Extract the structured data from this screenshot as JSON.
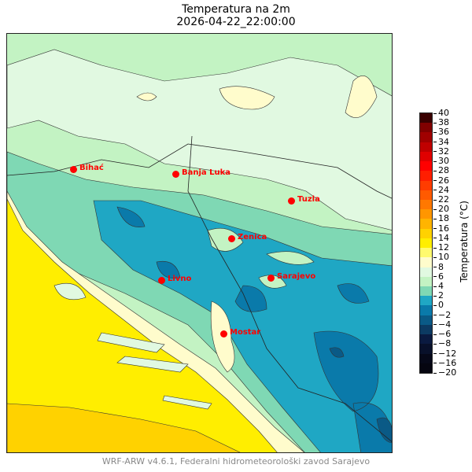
{
  "title": "Temperatura na 2m",
  "timestamp": "2026-04-22_22:00:00",
  "colorbar": {
    "label": "Temperatura (°C)",
    "ticks": [
      "40",
      "38",
      "36",
      "34",
      "32",
      "30",
      "28",
      "26",
      "24",
      "22",
      "20",
      "18",
      "16",
      "14",
      "12",
      "10",
      "8",
      "6",
      "4",
      "2",
      "0",
      "−2",
      "−4",
      "−6",
      "−8",
      "−12",
      "−16",
      "−20"
    ],
    "colors": [
      "#3a0000",
      "#800000",
      "#a00000",
      "#c00000",
      "#e00000",
      "#ff0000",
      "#ff1e00",
      "#ff3c00",
      "#ff5a00",
      "#ff7800",
      "#ff9600",
      "#ffb400",
      "#ffd200",
      "#ffee00",
      "#fffa6e",
      "#fffccc",
      "#e1f9e1",
      "#c3f3c3",
      "#7fd8b4",
      "#1fa7c4",
      "#0a7aaa",
      "#0a5a86",
      "#0c3a62",
      "#0a1a40",
      "#08102a",
      "#060818",
      "#050510"
    ]
  },
  "cities": [
    {
      "name": "Bihać"
    },
    {
      "name": "Banja Luka"
    },
    {
      "name": "Tuzla"
    },
    {
      "name": "Zenica"
    },
    {
      "name": "Livno"
    },
    {
      "name": "Sarajevo"
    },
    {
      "name": "Mostar"
    }
  ],
  "footer": "WRF-ARW v4.6.1, Federalni hidrometeorološki zavod Sarajevo"
}
